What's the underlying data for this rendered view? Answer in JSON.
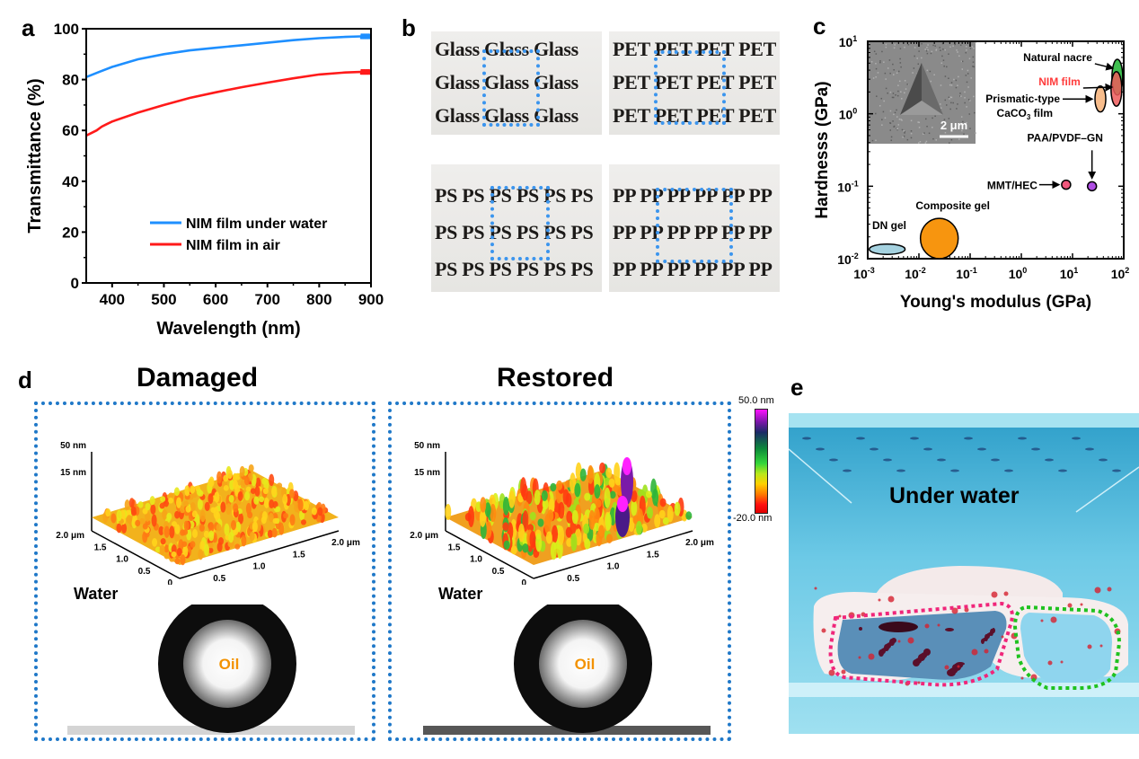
{
  "panels": {
    "a": {
      "letter": "a"
    },
    "b": {
      "letter": "b",
      "cells": [
        {
          "word": "Glass",
          "rows": [
            "Glass Glass Glass",
            "Glass Glass Glass",
            "Glass Glass Glass"
          ]
        },
        {
          "word": "PET",
          "rows": [
            "PET PET PET PET",
            "PET PET PET PET",
            "PET PET PET PET"
          ]
        },
        {
          "word": "PS",
          "rows": [
            "PS PS PS PS PS PS",
            "PS PS PS PS PS PS",
            "PS PS PS PS PS PS"
          ]
        },
        {
          "word": "PP",
          "rows": [
            "PP PP PP PP PP PP",
            "PP PP PP PP PP PP",
            "PP PP PP PP PP PP"
          ]
        }
      ],
      "highlight_color": "#3b95ee"
    },
    "c": {
      "letter": "c",
      "inset_scale_bar": "2 μm"
    },
    "d": {
      "letter": "d",
      "left_title": "Damaged",
      "right_title": "Restored",
      "z_labels": [
        "50 nm",
        "15 nm"
      ],
      "y_ticks": [
        "2.0 μm",
        "1.5",
        "1.0",
        "0.5",
        "0"
      ],
      "x_ticks": [
        "0.5",
        "1.0",
        "1.5",
        "2.0 μm"
      ],
      "medium_label": "Water",
      "droplet_label": "Oil",
      "colorbar_max": "50.0 nm",
      "colorbar_min": "-20.0 nm",
      "frame_color": "#1f78c8",
      "oil_color": "#f39200"
    },
    "e": {
      "letter": "e",
      "caption": "Under water",
      "left_outline_color": "#f0267a",
      "right_outline_color": "#1fc21f"
    }
  },
  "chart_data": [
    {
      "id": "a",
      "type": "line",
      "title": "",
      "xlabel": "Wavelength (nm)",
      "ylabel": "Transmittance (%)",
      "xlim": [
        350,
        900
      ],
      "ylim": [
        0,
        100
      ],
      "xticks": [
        400,
        500,
        600,
        700,
        800,
        900
      ],
      "yticks": [
        0,
        20,
        40,
        60,
        80,
        100
      ],
      "legend_position": "bottom-right",
      "series": [
        {
          "name": "NIM film under water",
          "color": "#1e8fff",
          "x": [
            350,
            375,
            400,
            425,
            450,
            500,
            550,
            600,
            650,
            700,
            750,
            800,
            850,
            880,
            900
          ],
          "y": [
            81,
            83,
            85,
            86.5,
            88,
            90,
            91.5,
            92.5,
            93.5,
            94.5,
            95.5,
            96.3,
            96.8,
            97,
            97
          ]
        },
        {
          "name": "NIM film in air",
          "color": "#ff1a1a",
          "x": [
            350,
            370,
            380,
            390,
            400,
            450,
            500,
            550,
            600,
            650,
            700,
            750,
            800,
            850,
            880,
            900
          ],
          "y": [
            58,
            60,
            61.5,
            62.5,
            63.5,
            67,
            70,
            72.8,
            75,
            77,
            78.8,
            80.5,
            82,
            82.8,
            83,
            83
          ]
        }
      ]
    },
    {
      "id": "c",
      "type": "scatter",
      "title": "",
      "xlabel": "Young's modulus (GPa)",
      "ylabel": "Hardnesss (GPa)",
      "xscale": "log",
      "yscale": "log",
      "xlim": [
        0.001,
        100
      ],
      "ylim": [
        0.01,
        10
      ],
      "xtick_labels": [
        "10^-3",
        "10^-2",
        "10^-1",
        "10^0",
        "10^1",
        "10^2"
      ],
      "ytick_labels": [
        "10^-2",
        "10^-1",
        "10^0",
        "10^1"
      ],
      "points": [
        {
          "label": "DN gel",
          "x": 0.0024,
          "y": 0.0135,
          "x_range": [
            0.0011,
            0.0055
          ],
          "y_range": [
            0.0115,
            0.016
          ],
          "color": "#a5d2e0"
        },
        {
          "label": "Composite gel",
          "x": 0.025,
          "y": 0.019,
          "x_range": [
            0.011,
            0.06
          ],
          "y_range": [
            0.01,
            0.036
          ],
          "color": "#f7950f"
        },
        {
          "label": "MMT/HEC",
          "x": 7.5,
          "y": 0.105,
          "color": "#f0577c"
        },
        {
          "label": "PAA/PVDF–GN",
          "x": 24,
          "y": 0.1,
          "color": "#b04ee4"
        },
        {
          "label": "Prismatic-type CaCO3 film",
          "x": 35,
          "y": 1.6,
          "y_range": [
            1.05,
            2.4
          ],
          "color": "#f8bd8c"
        },
        {
          "label": "Natural nacre",
          "x": 75,
          "y": 3.2,
          "y_range": [
            1.6,
            5.0
          ],
          "color": "#3fbf50"
        },
        {
          "label": "NIM film",
          "x": 72,
          "y": 2.2,
          "y_range": [
            1.1,
            3.3
          ],
          "color": "#ef5a5a",
          "label_color": "#ff3b3b"
        }
      ]
    }
  ]
}
